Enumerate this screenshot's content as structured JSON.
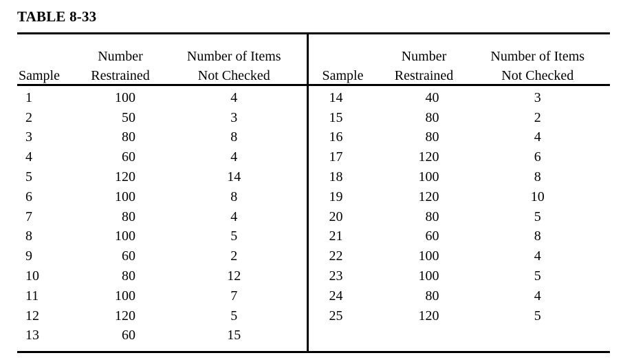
{
  "title": "TABLE 8-33",
  "colors": {
    "background": "#ffffff",
    "text": "#000000",
    "rule": "#000000"
  },
  "table": {
    "headers": [
      {
        "line1": "",
        "line2": "Sample"
      },
      {
        "line1": "Number",
        "line2": "Restrained"
      },
      {
        "line1": "Number of Items",
        "line2": "Not Checked"
      }
    ],
    "left_rows": [
      [
        "1",
        "100",
        "4"
      ],
      [
        "2",
        "50",
        "3"
      ],
      [
        "3",
        "80",
        "8"
      ],
      [
        "4",
        "60",
        "4"
      ],
      [
        "5",
        "120",
        "14"
      ],
      [
        "6",
        "100",
        "8"
      ],
      [
        "7",
        "80",
        "4"
      ],
      [
        "8",
        "100",
        "5"
      ],
      [
        "9",
        "60",
        "2"
      ],
      [
        "10",
        "80",
        "12"
      ],
      [
        "11",
        "100",
        "7"
      ],
      [
        "12",
        "120",
        "5"
      ],
      [
        "13",
        "60",
        "15"
      ]
    ],
    "right_rows": [
      [
        "14",
        "40",
        "3"
      ],
      [
        "15",
        "80",
        "2"
      ],
      [
        "16",
        "80",
        "4"
      ],
      [
        "17",
        "120",
        "6"
      ],
      [
        "18",
        "100",
        "8"
      ],
      [
        "19",
        "120",
        "10"
      ],
      [
        "20",
        "80",
        "5"
      ],
      [
        "21",
        "60",
        "8"
      ],
      [
        "22",
        "100",
        "4"
      ],
      [
        "23",
        "100",
        "5"
      ],
      [
        "24",
        "80",
        "4"
      ],
      [
        "25",
        "120",
        "5"
      ]
    ]
  }
}
